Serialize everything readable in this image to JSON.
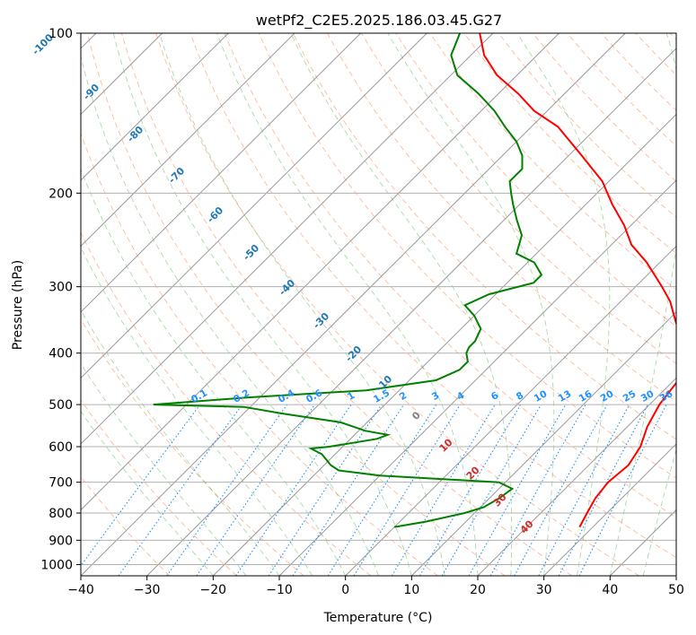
{
  "chart_data": {
    "type": "line",
    "title": "wetPf2_C2E5.2025.186.03.45.G27",
    "xlabel": "Temperature (°C)",
    "ylabel": "Pressure (hPa)",
    "xlim": [
      -40,
      50
    ],
    "ylim": [
      1050,
      100
    ],
    "y_scale": "log",
    "skew": 35,
    "grid": true,
    "x_ticks": [
      -40,
      -30,
      -20,
      -10,
      0,
      10,
      20,
      30,
      40,
      50
    ],
    "y_ticks": [
      100,
      200,
      300,
      400,
      500,
      600,
      700,
      800,
      900,
      1000
    ],
    "series": [
      {
        "color": "#ff0000",
        "data": [
          [
            850,
            28.0
          ],
          [
            800,
            27.0
          ],
          [
            750,
            26.0
          ],
          [
            700,
            25.5
          ],
          [
            650,
            26.0
          ],
          [
            600,
            25.0
          ],
          [
            550,
            23.0
          ],
          [
            500,
            21.5
          ],
          [
            470,
            21.0
          ],
          [
            440,
            20.5
          ],
          [
            410,
            18.0
          ],
          [
            380,
            15.5
          ],
          [
            350,
            11.5
          ],
          [
            320,
            7.5
          ],
          [
            300,
            4.0
          ],
          [
            270,
            -2.0
          ],
          [
            250,
            -7.0
          ],
          [
            230,
            -11.0
          ],
          [
            210,
            -16.0
          ],
          [
            190,
            -21.0
          ],
          [
            170,
            -28.0
          ],
          [
            150,
            -36.0
          ],
          [
            140,
            -42.0
          ],
          [
            130,
            -47.0
          ],
          [
            120,
            -53.0
          ],
          [
            110,
            -58.0
          ],
          [
            100,
            -62.0
          ]
        ]
      },
      {
        "color": "#008000",
        "data": [
          [
            850,
            0.0
          ],
          [
            830,
            4.0
          ],
          [
            800,
            8.5
          ],
          [
            780,
            10.5
          ],
          [
            750,
            11.5
          ],
          [
            720,
            12.0
          ],
          [
            700,
            9.0
          ],
          [
            680,
            -10.0
          ],
          [
            665,
            -17.0
          ],
          [
            650,
            -19.0
          ],
          [
            620,
            -22.0
          ],
          [
            605,
            -24.5
          ],
          [
            600,
            -22.0
          ],
          [
            590,
            -19.0
          ],
          [
            580,
            -16.0
          ],
          [
            570,
            -15.0
          ],
          [
            560,
            -19.0
          ],
          [
            540,
            -24.0
          ],
          [
            520,
            -34.0
          ],
          [
            505,
            -41.0
          ],
          [
            500,
            -55.0
          ],
          [
            485,
            -42.0
          ],
          [
            470,
            -25.0
          ],
          [
            450,
            -16.0
          ],
          [
            430,
            -14.0
          ],
          [
            415,
            -14.0
          ],
          [
            400,
            -15.5
          ],
          [
            390,
            -16.0
          ],
          [
            380,
            -16.0
          ],
          [
            360,
            -17.0
          ],
          [
            340,
            -20.0
          ],
          [
            325,
            -23.0
          ],
          [
            310,
            -21.0
          ],
          [
            295,
            -16.0
          ],
          [
            285,
            -16.0
          ],
          [
            270,
            -19.0
          ],
          [
            260,
            -23.0
          ],
          [
            240,
            -25.0
          ],
          [
            225,
            -28.0
          ],
          [
            210,
            -31.0
          ],
          [
            200,
            -33.0
          ],
          [
            190,
            -35.0
          ],
          [
            180,
            -35.0
          ],
          [
            170,
            -37.0
          ],
          [
            160,
            -40.0
          ],
          [
            150,
            -44.0
          ],
          [
            140,
            -48.0
          ],
          [
            130,
            -53.0
          ],
          [
            120,
            -59.0
          ],
          [
            110,
            -63.0
          ],
          [
            100,
            -65.0
          ]
        ]
      }
    ],
    "dry_adiabat_color": "#ff7f50",
    "moist_adiabat_color": "#2ca02c",
    "mixing_ratio_color": "#1e90ff",
    "isotherm_labels": [
      "-100",
      "-90",
      "-80",
      "-70",
      "-60",
      "-50",
      "-40",
      "-30",
      "-20",
      "-10",
      "0",
      "10",
      "20",
      "30",
      "40"
    ],
    "mixing_ratio_labels": [
      "0.1",
      "0.2",
      "0.4",
      "0.6",
      "1",
      "1.5",
      "2",
      "3",
      "4",
      "6",
      "8",
      "10",
      "13",
      "16",
      "20",
      "25",
      "30",
      "36"
    ]
  }
}
